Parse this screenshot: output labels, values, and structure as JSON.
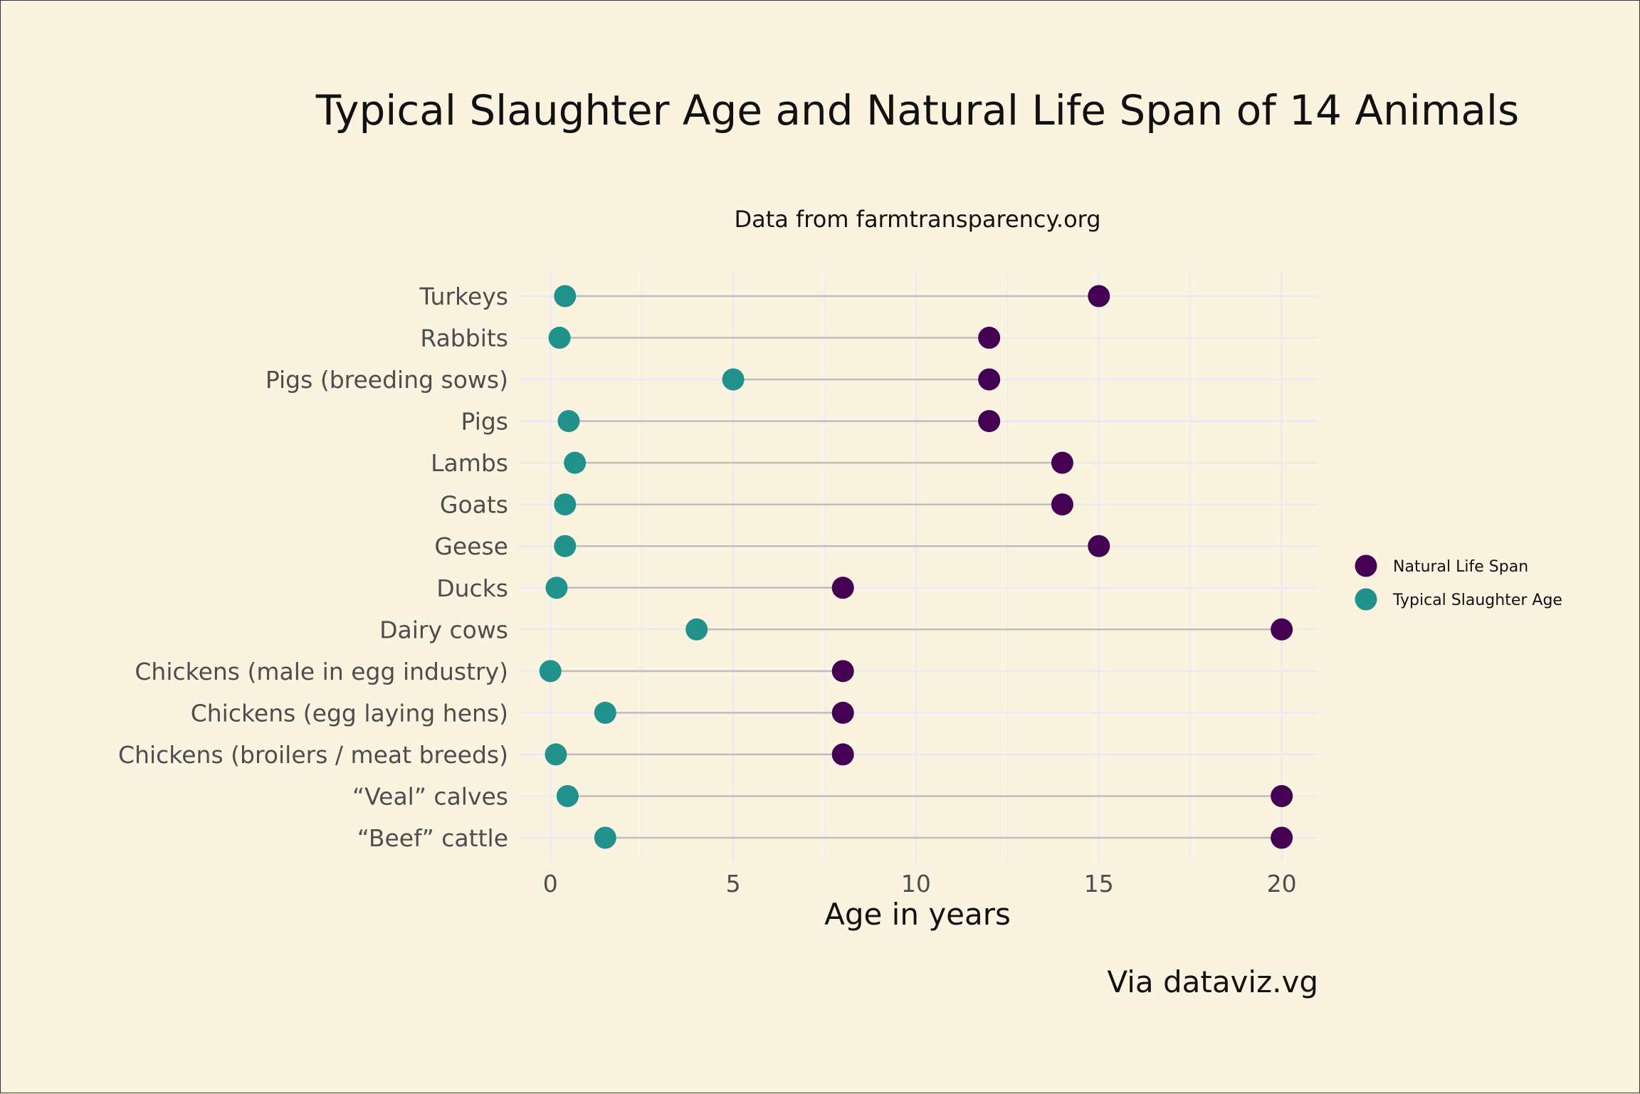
{
  "chart_data": {
    "type": "scatter",
    "subtype": "dumbbell",
    "title": "Typical Slaughter Age and Natural Life Span of 14 Animals",
    "subtitle": "Data from farmtransparency.org",
    "xlabel": "Age in years",
    "ylabel": "",
    "caption": "Via dataviz.vg",
    "xlim": [
      -0.9,
      21
    ],
    "xticks": [
      0,
      5,
      10,
      15,
      20
    ],
    "xtick_labels": [
      "0",
      "5",
      "10",
      "15",
      "20"
    ],
    "grid": true,
    "legend_position": "right",
    "categories": [
      "Turkeys",
      "Rabbits",
      "Pigs (breeding sows)",
      "Pigs",
      "Lambs",
      "Goats",
      "Geese",
      "Ducks",
      "Dairy cows",
      "Chickens (male in egg industry)",
      "Chickens (egg laying hens)",
      "Chickens (broilers / meat breeds)",
      "“Veal” calves",
      "“Beef” cattle"
    ],
    "series": [
      {
        "name": "Natural Life Span",
        "color": "#440154",
        "values": [
          15,
          12,
          12,
          12,
          14,
          14,
          15,
          8,
          20,
          8,
          8,
          8,
          20,
          20
        ]
      },
      {
        "name": "Typical Slaughter Age",
        "color": "#21918C",
        "values": [
          0.4,
          0.25,
          5,
          0.5,
          0.67,
          0.4,
          0.4,
          0.17,
          4,
          0,
          1.5,
          0.15,
          0.47,
          1.5
        ]
      }
    ],
    "colors": {
      "background": "#FAF3E0",
      "segment": "#BEBEBE",
      "grid": "#EDE9F0"
    }
  }
}
